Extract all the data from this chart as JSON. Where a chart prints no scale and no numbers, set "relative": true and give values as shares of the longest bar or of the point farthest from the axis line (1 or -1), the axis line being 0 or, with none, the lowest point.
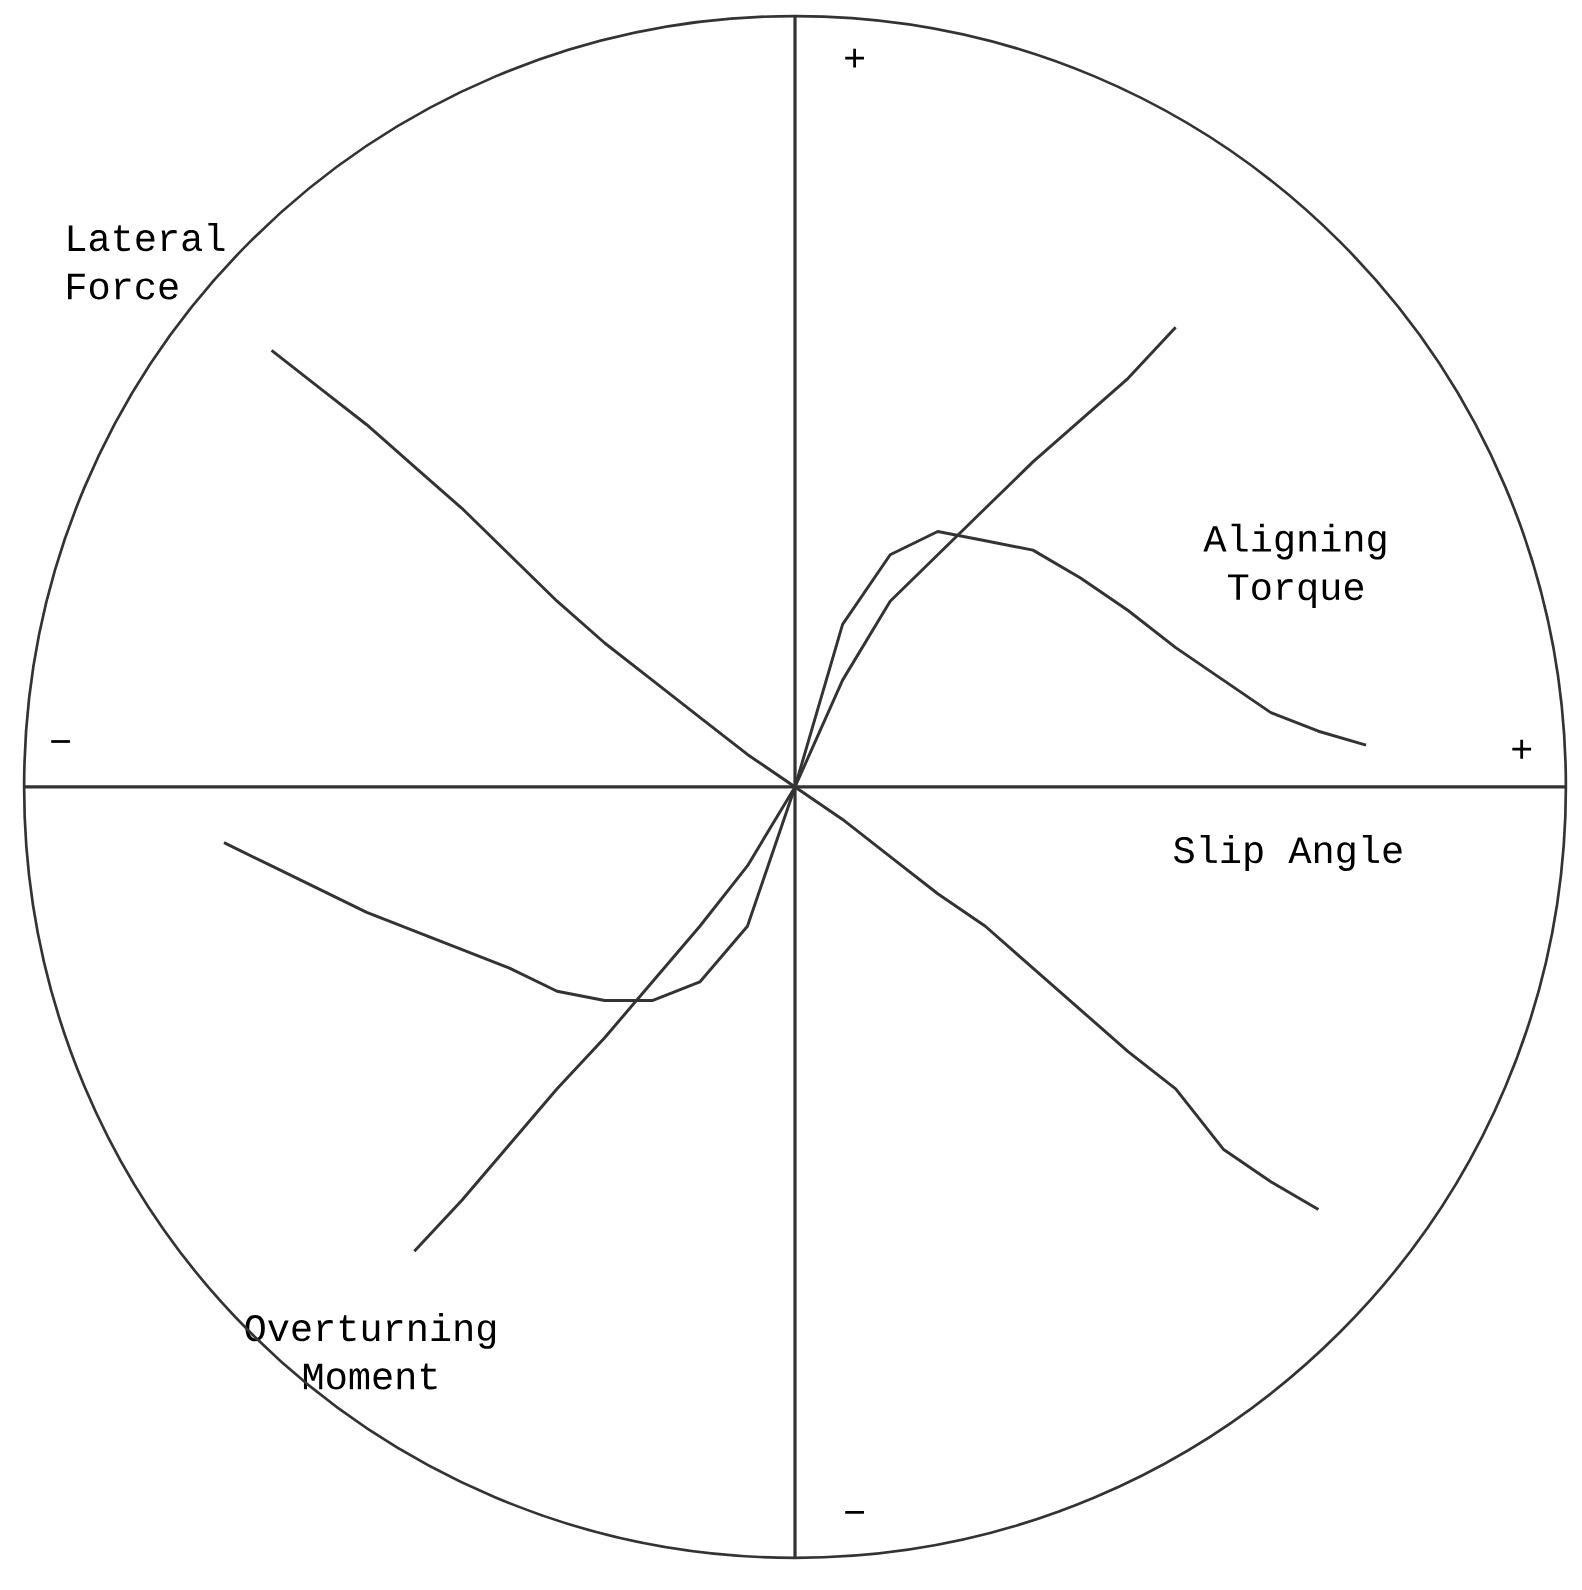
{
  "chart_data": {
    "type": "line",
    "relative": true,
    "xlabel": "Slip Angle",
    "legend": false,
    "marker": "none",
    "line_style": "solid",
    "annotations": [
      "+",
      "−",
      "+",
      "−"
    ],
    "categories": [
      null,
      null,
      null,
      null,
      null,
      null,
      null,
      null,
      null,
      null,
      null,
      null,
      null,
      null,
      null,
      null,
      null,
      null,
      null,
      null,
      null,
      null,
      null,
      null,
      null
    ],
    "series": [
      {
        "name": "Lateral Force",
        "color": "#333333",
        "values": [
          null,
          0.94,
          0.86,
          0.78,
          0.69,
          0.6,
          0.5,
          0.4,
          0.31,
          0.23,
          0.15,
          0.07,
          0,
          -0.07,
          -0.15,
          -0.23,
          -0.3,
          -0.39,
          -0.48,
          -0.57,
          -0.65,
          -0.78,
          -0.85,
          -0.91,
          null
        ]
      },
      {
        "name": "Aligning Torque",
        "color": "#333333",
        "values": [
          -0.12,
          -0.17,
          -0.22,
          -0.27,
          -0.31,
          -0.35,
          -0.39,
          -0.44,
          -0.46,
          -0.46,
          -0.42,
          -0.3,
          0,
          0.35,
          0.5,
          0.55,
          0.53,
          0.51,
          0.45,
          0.38,
          0.3,
          0.23,
          0.16,
          0.12,
          0.09
        ]
      },
      {
        "name": "Overturning Moment",
        "color": "#333333",
        "values": [
          null,
          null,
          null,
          null,
          -1.0,
          -0.89,
          -0.77,
          -0.65,
          -0.54,
          -0.42,
          -0.3,
          -0.17,
          0,
          0.23,
          0.4,
          0.5,
          0.6,
          0.7,
          0.79,
          0.88,
          0.99,
          null,
          null,
          null,
          null
        ]
      }
    ]
  }
}
